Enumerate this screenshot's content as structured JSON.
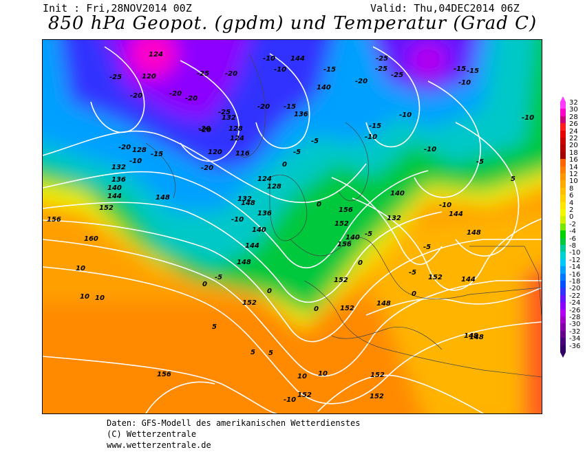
{
  "header": {
    "init": "Init : Fri,28NOV2014 00Z",
    "valid": "Valid: Thu,04DEC2014 06Z",
    "title": "850 hPa Geopot. (gpdm) und Temperatur (Grad C)"
  },
  "legend": {
    "values": [
      "32",
      "30",
      "28",
      "26",
      "24",
      "22",
      "20",
      "18",
      "16",
      "14",
      "12",
      "10",
      "8",
      "6",
      "4",
      "2",
      "0",
      "-2",
      "-4",
      "-6",
      "-8",
      "-10",
      "-12",
      "-14",
      "-16",
      "-18",
      "-20",
      "-22",
      "-24",
      "-26",
      "-28",
      "-30",
      "-32",
      "-34",
      "-36"
    ],
    "colors": [
      "#ff3cff",
      "#ff00c8",
      "#c8007a",
      "#ff1e1e",
      "#e60000",
      "#c80000",
      "#b40000",
      "#a00000",
      "#ff6400",
      "#ff7d00",
      "#ff9600",
      "#ffaa00",
      "#ffbe00",
      "#ffd200",
      "#ffe600",
      "#f5f500",
      "#d2f000",
      "#78e600",
      "#00d200",
      "#00c83c",
      "#00c896",
      "#00d2d2",
      "#00c8ff",
      "#00a0ff",
      "#0078ff",
      "#0050ff",
      "#3232ff",
      "#6414ff",
      "#8c00ff",
      "#b400f0",
      "#a000c8",
      "#8200aa",
      "#64008c",
      "#460078",
      "#320064"
    ]
  },
  "map": {
    "geopotential_labels": [
      "124",
      "120",
      "128",
      "132",
      "136",
      "140",
      "144",
      "148",
      "152",
      "156",
      "160",
      "116",
      "124",
      "128",
      "132",
      "136",
      "140",
      "144",
      "148",
      "152",
      "156",
      "120",
      "124",
      "128",
      "132",
      "136",
      "140",
      "144",
      "148",
      "152",
      "156",
      "152",
      "148",
      "152",
      "148",
      "152",
      "152",
      "140",
      "132",
      "148",
      "144",
      "152",
      "156",
      "140",
      "152",
      "144",
      "148"
    ],
    "temperature_labels": [
      "-25",
      "-20",
      "-25",
      "-20",
      "-20",
      "-10",
      "-10",
      "-15",
      "-20",
      "-15",
      "-20",
      "-25",
      "-25",
      "-15",
      "-10",
      "-25",
      "-20",
      "-20",
      "-15",
      "-10",
      "-15",
      "-10",
      "-10",
      "-5",
      "-5",
      "-10",
      "-10",
      "-5",
      "-5",
      "-10",
      "-15",
      "-10",
      "-5",
      "-5",
      "-5",
      "0",
      "0",
      "0",
      "0",
      "0",
      "0",
      "0",
      "5",
      "5",
      "5",
      "5",
      "10",
      "10",
      "10",
      "10",
      "10",
      "-10",
      "-20",
      "-20",
      "-25",
      "-20"
    ]
  },
  "footer": {
    "line1": "Daten: GFS-Modell des amerikanischen Wetterdienstes",
    "line2": "(C) Wetterzentrale",
    "line3": "www.wetterzentrale.de"
  }
}
